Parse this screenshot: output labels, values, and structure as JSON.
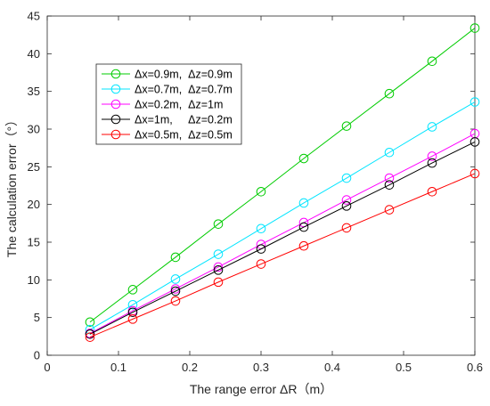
{
  "chart_data": {
    "type": "line",
    "xlabel": "The range error ΔR（m）",
    "ylabel": "The calculation error（°）",
    "xlim": [
      0,
      0.6
    ],
    "ylim": [
      0,
      45
    ],
    "xticks": [
      "0",
      "0.1",
      "0.2",
      "0.3",
      "0.4",
      "0.5",
      "0.6"
    ],
    "yticks": [
      "0",
      "5",
      "10",
      "15",
      "20",
      "25",
      "30",
      "35",
      "40",
      "45"
    ],
    "grid": false,
    "legend_position": "top-left",
    "marker": "circle",
    "x": [
      0.06,
      0.12,
      0.18,
      0.24,
      0.3,
      0.36,
      0.42,
      0.48,
      0.54,
      0.6
    ],
    "series": [
      {
        "name": "Δx=0.9m,  Δz=0.9m",
        "color": "#00cc00",
        "values": [
          4.4,
          8.7,
          13.0,
          17.4,
          21.7,
          26.1,
          30.4,
          34.7,
          39.0,
          43.4
        ]
      },
      {
        "name": "Δx=0.7m,  Δz=0.7m",
        "color": "#00e5ff",
        "values": [
          3.4,
          6.7,
          10.1,
          13.4,
          16.8,
          20.2,
          23.5,
          26.9,
          30.3,
          33.6
        ]
      },
      {
        "name": "Δx=0.2m,  Δz=1m",
        "color": "#ff00ff",
        "values": [
          2.9,
          5.9,
          8.8,
          11.7,
          14.7,
          17.6,
          20.6,
          23.5,
          26.4,
          29.4
        ]
      },
      {
        "name": "Δx=1m,     Δz=0.2m",
        "color": "#000000",
        "values": [
          2.8,
          5.7,
          8.5,
          11.3,
          14.1,
          17.0,
          19.8,
          22.6,
          25.5,
          28.3
        ]
      },
      {
        "name": "Δx=0.5m,  Δz=0.5m",
        "color": "#ff0000",
        "values": [
          2.4,
          4.8,
          7.2,
          9.7,
          12.1,
          14.5,
          16.9,
          19.3,
          21.7,
          24.1
        ]
      }
    ]
  }
}
